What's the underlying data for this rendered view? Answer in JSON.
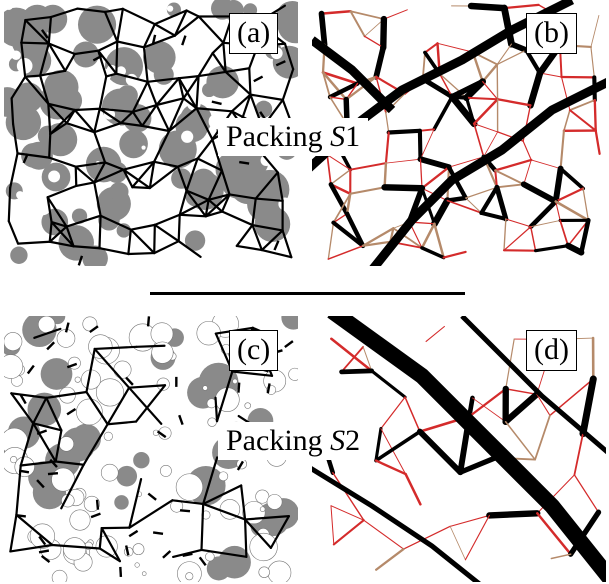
{
  "figure": {
    "panels": [
      {
        "id": "a",
        "label": "(a)",
        "style": "grains-network"
      },
      {
        "id": "b",
        "label": "(b)",
        "style": "force-chains"
      },
      {
        "id": "c",
        "label": "(c)",
        "style": "grains-network"
      },
      {
        "id": "d",
        "label": "(d)",
        "style": "force-chains"
      }
    ],
    "captions": [
      {
        "prefix": "Packing ",
        "symbol": "S",
        "suffix": "1"
      },
      {
        "prefix": "Packing ",
        "symbol": "S",
        "suffix": "2"
      }
    ],
    "colors": {
      "grain_fill": "#8a8a8a",
      "strong_chain": "#000000",
      "weak_chain": "#d42b2b",
      "faint_chain": "#b58a6a",
      "background": "#ffffff"
    }
  }
}
